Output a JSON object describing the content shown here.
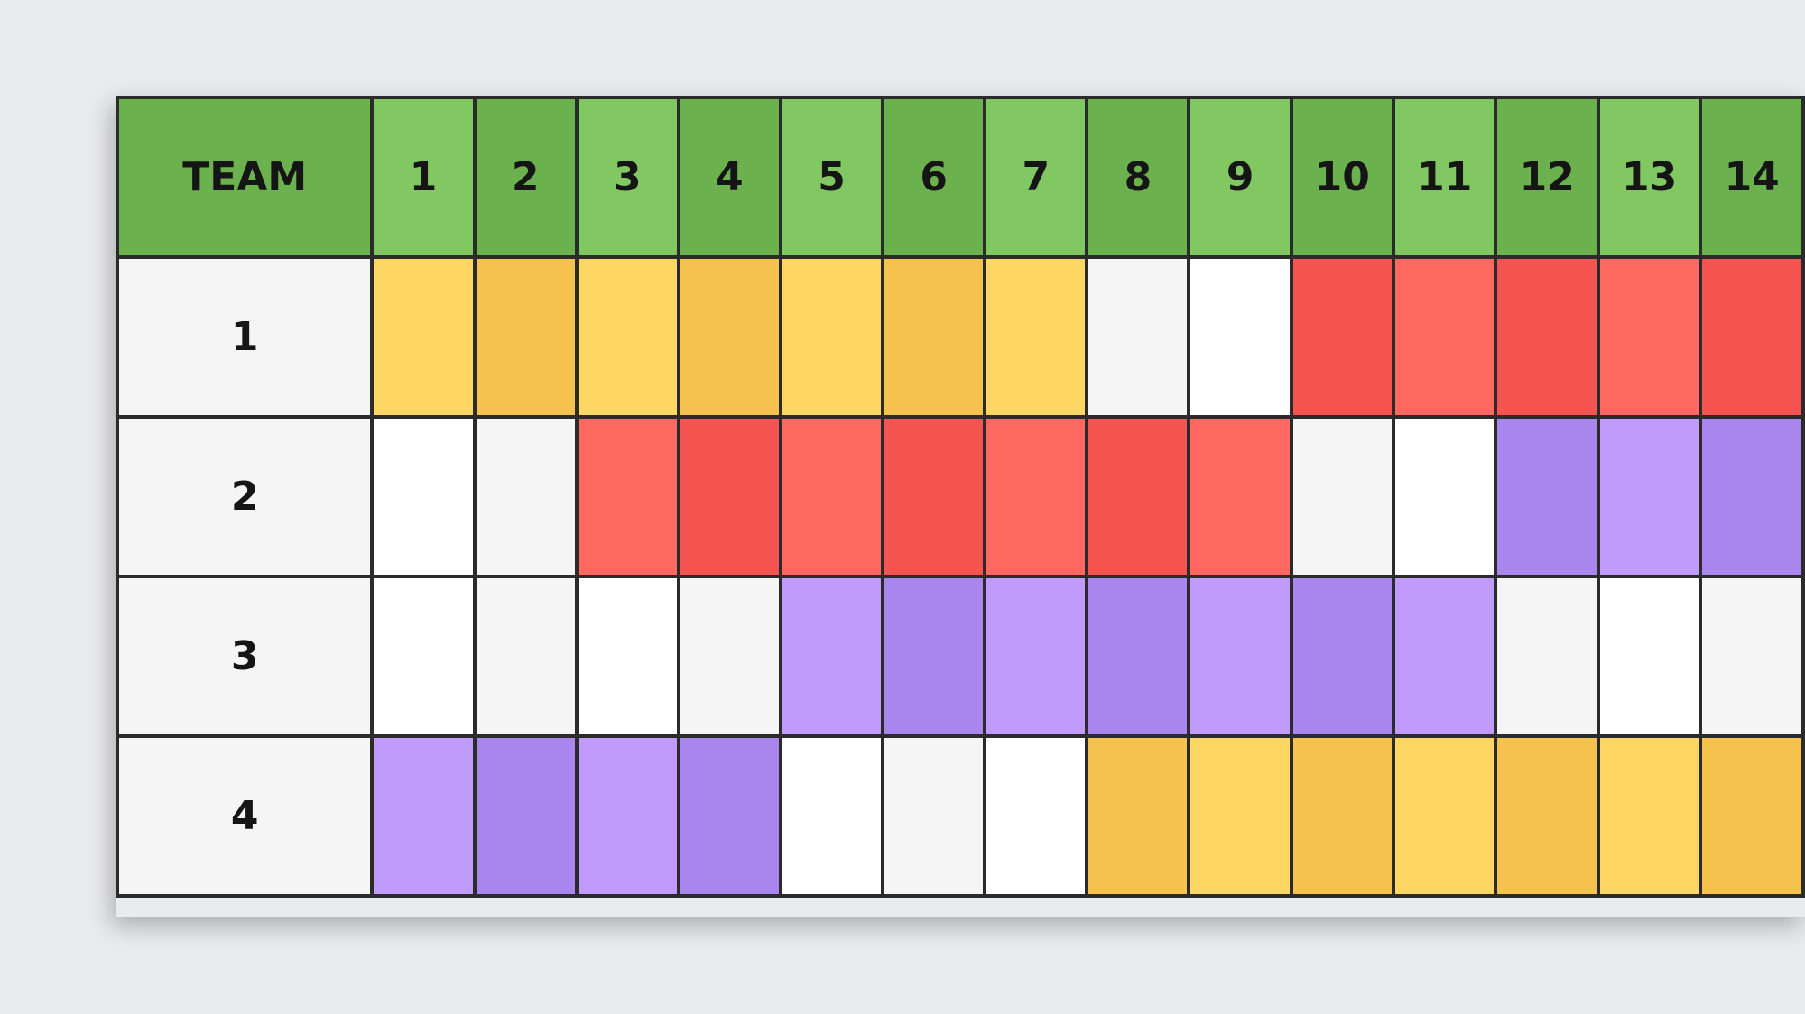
{
  "header": {
    "team_label": "TEAM",
    "days": [
      "1",
      "2",
      "3",
      "4",
      "5",
      "6",
      "7",
      "8",
      "9",
      "10",
      "11",
      "12",
      "13",
      "14"
    ]
  },
  "colors": {
    "header_light": "#82c862",
    "header_dark": "#6bb24f",
    "yellow_light": "#fdd663",
    "yellow_dark": "#f5c24e",
    "red_light": "#ff6961",
    "red_dark": "#f55551",
    "purple_light": "#c09bfb",
    "purple_dark": "#a886ed",
    "white": "#ffffff",
    "grey": "#f5f5f5"
  },
  "rows": [
    {
      "team": "1",
      "cells": [
        "yellow_light",
        "yellow_dark",
        "yellow_light",
        "yellow_dark",
        "yellow_light",
        "yellow_dark",
        "yellow_light",
        "grey",
        "white",
        "red_dark",
        "red_light",
        "red_dark",
        "red_light",
        "red_dark"
      ]
    },
    {
      "team": "2",
      "cells": [
        "white",
        "grey",
        "red_light",
        "red_dark",
        "red_light",
        "red_dark",
        "red_light",
        "red_dark",
        "red_light",
        "grey",
        "white",
        "purple_dark",
        "purple_light",
        "purple_dark"
      ]
    },
    {
      "team": "3",
      "cells": [
        "white",
        "grey",
        "white",
        "grey",
        "purple_light",
        "purple_dark",
        "purple_light",
        "purple_dark",
        "purple_light",
        "purple_dark",
        "purple_light",
        "grey",
        "white",
        "grey"
      ]
    },
    {
      "team": "4",
      "cells": [
        "purple_light",
        "purple_dark",
        "purple_light",
        "purple_dark",
        "white",
        "grey",
        "white",
        "yellow_dark",
        "yellow_light",
        "yellow_dark",
        "yellow_light",
        "yellow_dark",
        "yellow_light",
        "yellow_dark"
      ]
    }
  ]
}
